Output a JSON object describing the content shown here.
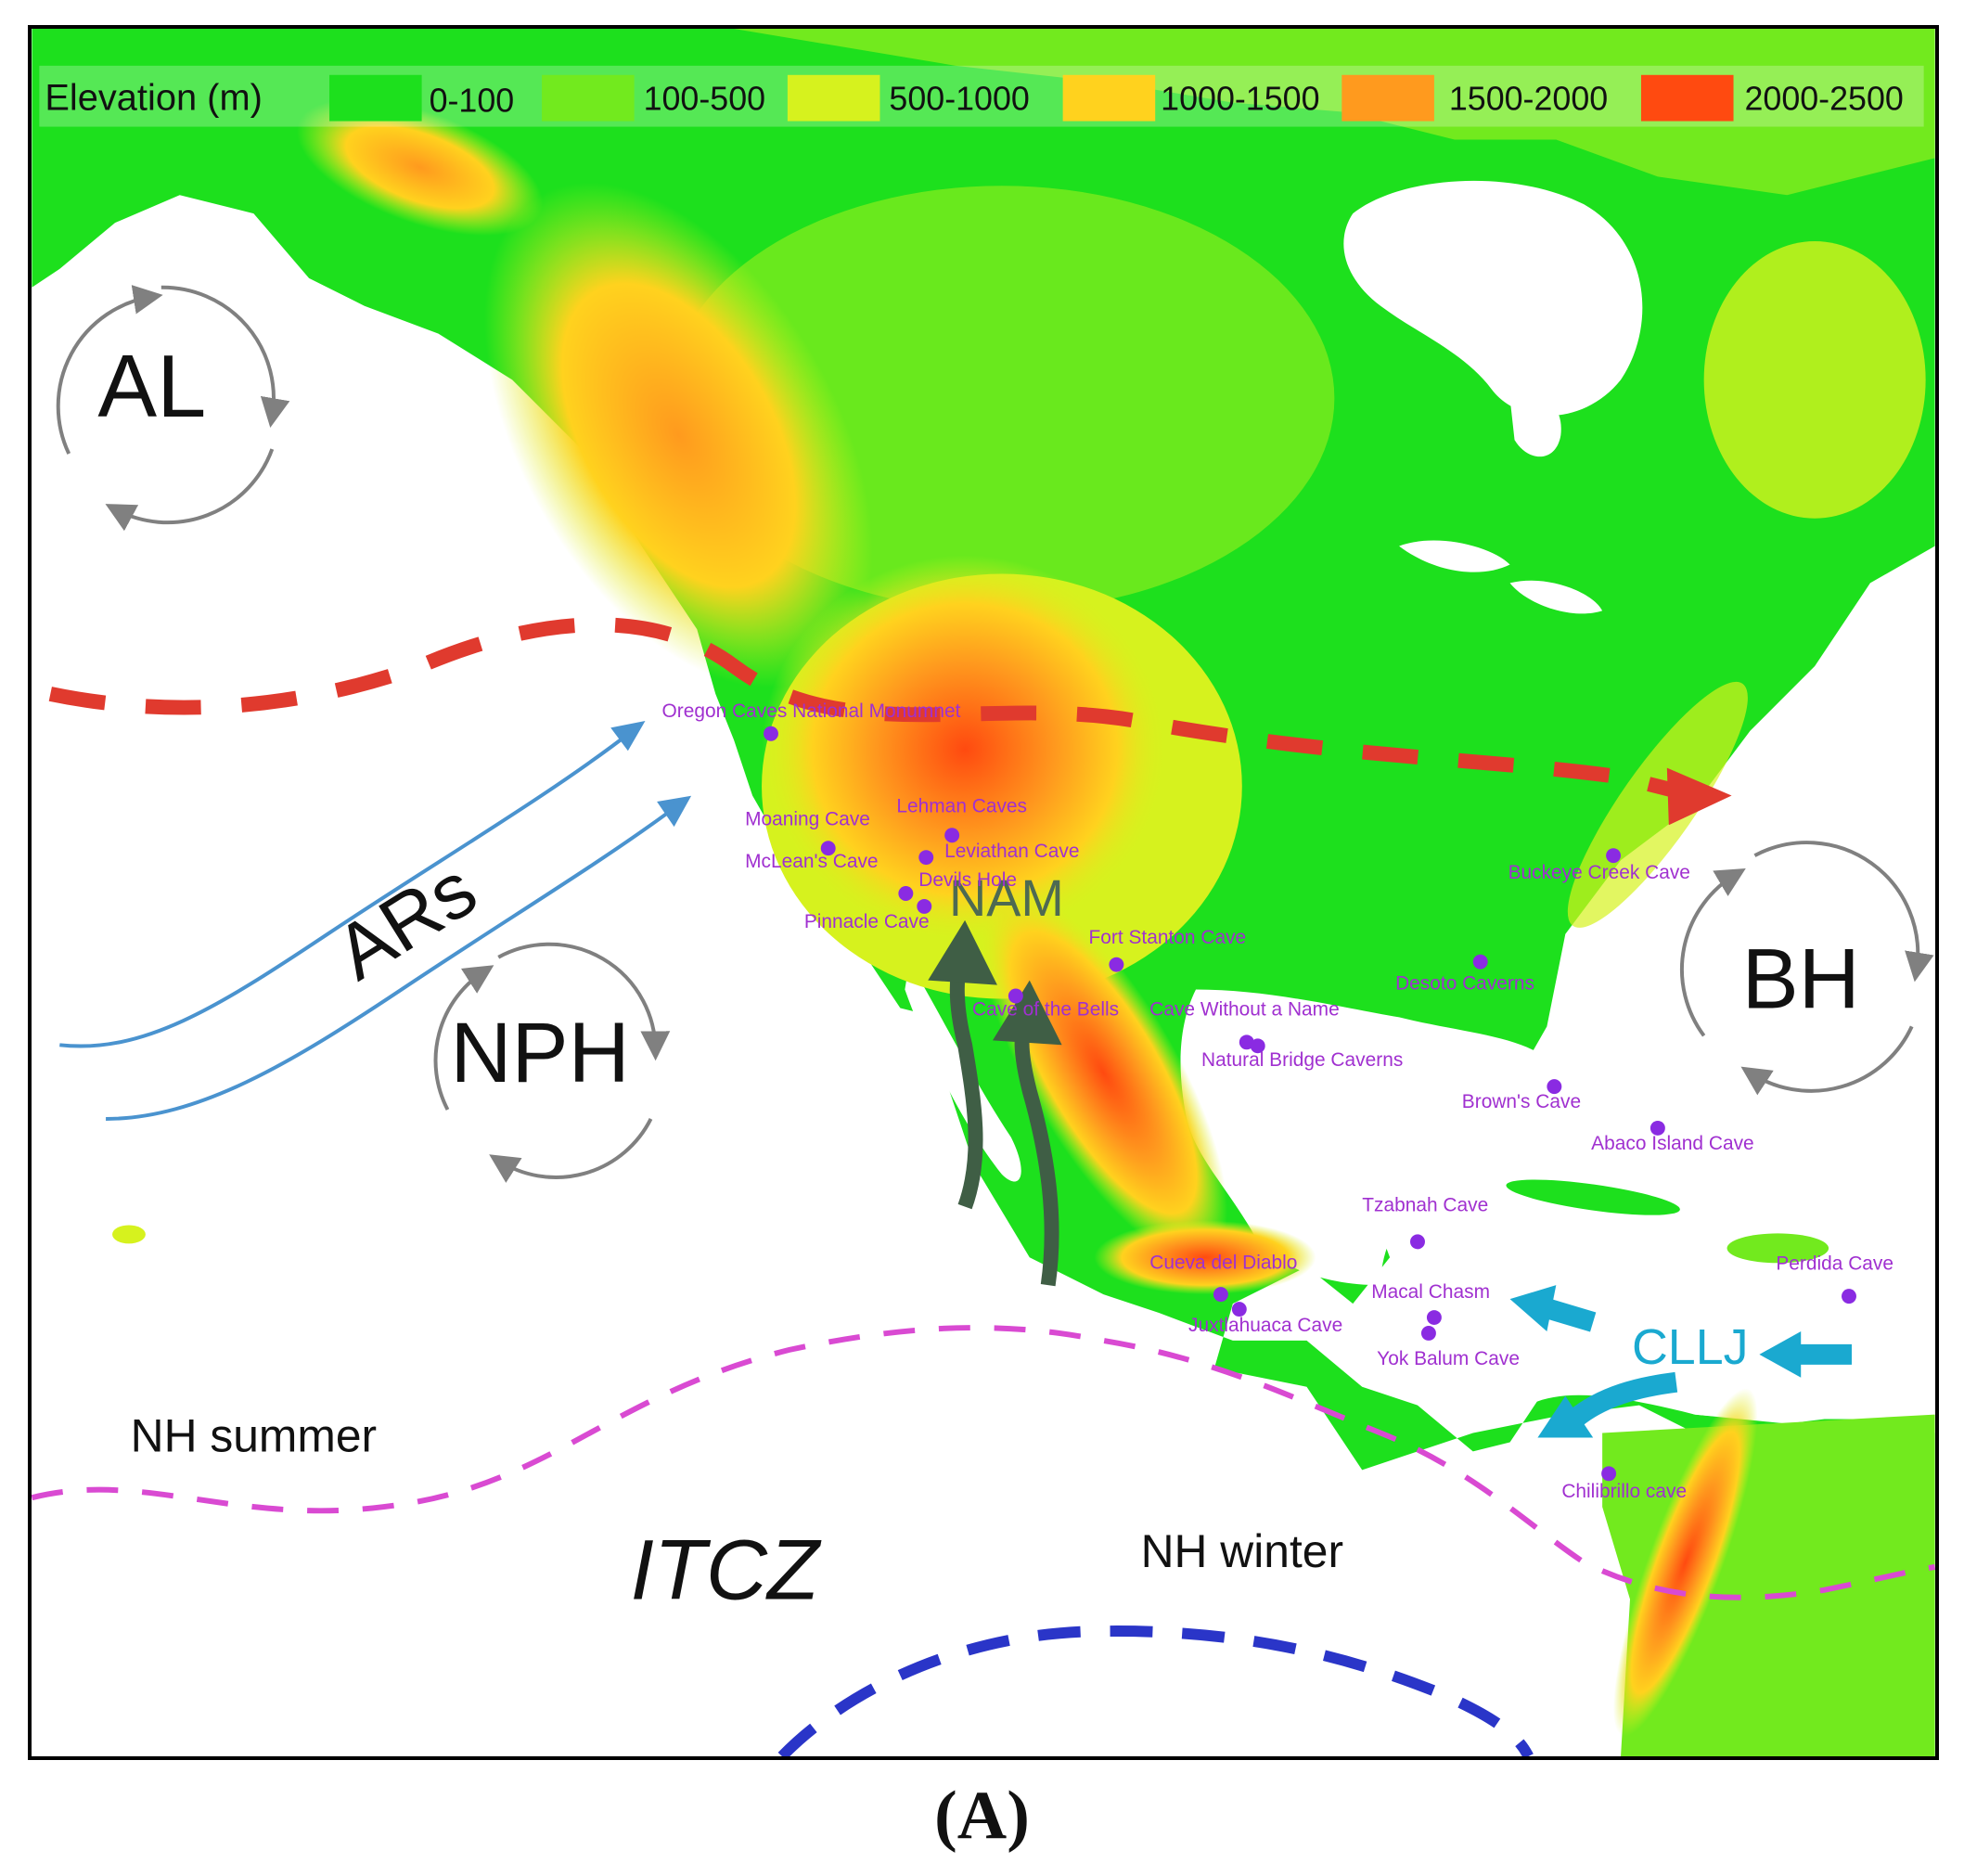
{
  "legend": {
    "title": "Elevation (m)",
    "items": [
      {
        "label": "0-100",
        "color": "#1de01d"
      },
      {
        "label": "100-500",
        "color": "#72ea1e"
      },
      {
        "label": "500-1000",
        "color": "#d6f21e"
      },
      {
        "label": "1000-1500",
        "color": "#ffd21e"
      },
      {
        "label": "1500-2000",
        "color": "#ff9a1e"
      },
      {
        "label": "2000-2500",
        "color": "#ff4a10"
      }
    ]
  },
  "pressure_systems": [
    {
      "label": "AL"
    },
    {
      "label": "NPH"
    },
    {
      "label": "BH"
    }
  ],
  "flows": {
    "ars": "ARs",
    "nam": "NAM",
    "cllj": "CLLJ"
  },
  "itcz": {
    "label": "ITCZ",
    "summer_label": "NH summer",
    "winter_label": "NH winter"
  },
  "caves": [
    "Oregon Caves National Monumnet",
    "Moaning Cave",
    "McLean's Cave",
    "Lehman Caves",
    "Leviathan Cave",
    "Devils Hole",
    "Pinnacle Cave",
    "Fort Stanton Cave",
    "Cave of the Bells",
    "Cave Without a Name",
    "Natural Bridge Caverns",
    "Buckeye Creek Cave",
    "Desoto Caverns",
    "Brown's Cave",
    "Abaco Island Cave",
    "Tzabnah Cave",
    "Cueva del Diablo",
    "Macal Chasm",
    "Juxtlahuaca Cave",
    "Yok Balum Cave",
    "Perdida Cave",
    "Chilibrillo cave"
  ],
  "colors": {
    "jet_stream": "#e03a2e",
    "itcz_summer": "#d94ad2",
    "itcz_winter": "#2a35c8",
    "ars_arrows": "#4a93cf",
    "nam_arrows": "#3f5e45",
    "cllj_arrows": "#1aa9d0",
    "cave_dot": "#8a2be2",
    "cave_label": "#a030d0",
    "circulation": "#808080"
  },
  "panel_label": "(A)"
}
